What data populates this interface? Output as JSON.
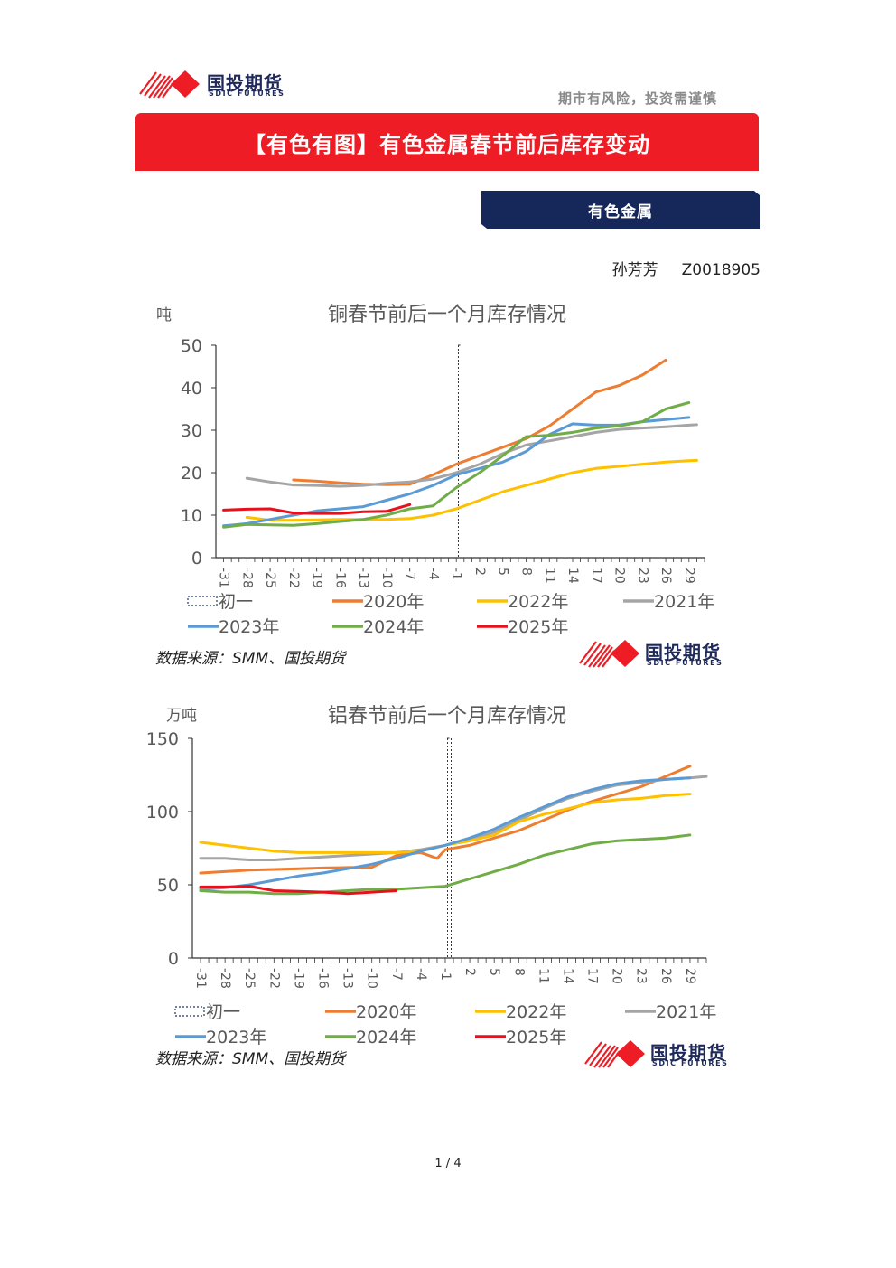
{
  "header": {
    "logo_cn": "国投期货",
    "logo_en": "SDIC FUTURES",
    "slogan": "期市有风险，投资需谨慎"
  },
  "banner": {
    "title": "【有色有图】有色金属春节前后库存变动"
  },
  "category": {
    "label": "有色金属"
  },
  "author": {
    "name": "孙芳芳",
    "id": "Z0018905"
  },
  "colors": {
    "2020年": "#ed7d31",
    "2021年": "#a5a5a5",
    "2022年": "#ffc000",
    "2023年": "#5b9bd5",
    "2024年": "#70ad47",
    "2025年": "#e8101c",
    "初一": "#1f3864",
    "banner": "#ee1c25",
    "category": "#16285a"
  },
  "chart_data": [
    {
      "type": "line",
      "title": "铜春节前后一个月库存情况",
      "ylabel": "吨",
      "ylim": [
        0,
        50
      ],
      "yticks": [
        0,
        10,
        20,
        30,
        40,
        50
      ],
      "x_tick_labels": [
        "-31",
        "-28",
        "-25",
        "-22",
        "-19",
        "-16",
        "-13",
        "-10",
        "-7",
        "-4",
        "-1",
        "2",
        "5",
        "8",
        "11",
        "14",
        "17",
        "20",
        "23",
        "26",
        "29"
      ],
      "xlim": [
        -32,
        31
      ],
      "marker_x": -0.5,
      "legend": [
        "初一",
        "2020年",
        "2022年",
        "2021年",
        "2023年",
        "2024年",
        "2025年"
      ],
      "source": "数据来源：SMM、国投期货",
      "series": [
        {
          "name": "2020年",
          "points": [
            [
              -22,
              18.3
            ],
            [
              -19,
              18
            ],
            [
              -16,
              17.6
            ],
            [
              -13,
              17.3
            ],
            [
              -10,
              17.2
            ],
            [
              -7,
              17.3
            ],
            [
              -4,
              19.5
            ],
            [
              -1,
              22
            ],
            [
              2,
              24
            ],
            [
              5,
              26
            ],
            [
              8,
              28
            ],
            [
              11,
              31
            ],
            [
              14,
              35
            ],
            [
              17,
              39
            ],
            [
              20,
              40.5
            ],
            [
              23,
              43
            ],
            [
              26,
              46.5
            ]
          ]
        },
        {
          "name": "2021年",
          "points": [
            [
              -28,
              18.7
            ],
            [
              -25,
              17.8
            ],
            [
              -22,
              17.1
            ],
            [
              -19,
              17
            ],
            [
              -16,
              16.8
            ],
            [
              -13,
              17
            ],
            [
              -10,
              17.5
            ],
            [
              -7,
              17.8
            ],
            [
              -4,
              18.5
            ],
            [
              -1,
              20
            ],
            [
              2,
              22
            ],
            [
              5,
              24.5
            ],
            [
              8,
              26.5
            ],
            [
              11,
              27.5
            ],
            [
              14,
              28.5
            ],
            [
              17,
              29.5
            ],
            [
              20,
              30.2
            ],
            [
              23,
              30.5
            ],
            [
              26,
              30.8
            ],
            [
              29,
              31.2
            ],
            [
              30,
              31.3
            ]
          ]
        },
        {
          "name": "2022年",
          "points": [
            [
              -28,
              9.5
            ],
            [
              -25,
              8.8
            ],
            [
              -22,
              8.8
            ],
            [
              -19,
              8.9
            ],
            [
              -16,
              9
            ],
            [
              -13,
              9
            ],
            [
              -10,
              9
            ],
            [
              -7,
              9.2
            ],
            [
              -4,
              10
            ],
            [
              -1,
              11.5
            ],
            [
              2,
              13.5
            ],
            [
              5,
              15.5
            ],
            [
              8,
              17
            ],
            [
              11,
              18.5
            ],
            [
              14,
              20
            ],
            [
              17,
              21
            ],
            [
              20,
              21.5
            ],
            [
              23,
              22
            ],
            [
              26,
              22.5
            ],
            [
              29,
              22.8
            ],
            [
              30,
              22.9
            ]
          ]
        },
        {
          "name": "2023年",
          "points": [
            [
              -31,
              7.5
            ],
            [
              -28,
              8
            ],
            [
              -25,
              9
            ],
            [
              -22,
              10
            ],
            [
              -19,
              11
            ],
            [
              -16,
              11.5
            ],
            [
              -13,
              12
            ],
            [
              -10,
              13.5
            ],
            [
              -7,
              15
            ],
            [
              -4,
              17
            ],
            [
              -1,
              19.5
            ],
            [
              2,
              21
            ],
            [
              5,
              22.5
            ],
            [
              8,
              25
            ],
            [
              11,
              29
            ],
            [
              14,
              31.5
            ],
            [
              17,
              31.2
            ],
            [
              20,
              31.2
            ],
            [
              23,
              32
            ],
            [
              26,
              32.5
            ],
            [
              29,
              33
            ]
          ]
        },
        {
          "name": "2024年",
          "points": [
            [
              -31,
              7.2
            ],
            [
              -28,
              7.8
            ],
            [
              -25,
              7.7
            ],
            [
              -22,
              7.6
            ],
            [
              -19,
              8
            ],
            [
              -16,
              8.5
            ],
            [
              -13,
              9
            ],
            [
              -10,
              10
            ],
            [
              -7,
              11.5
            ],
            [
              -4,
              12.2
            ],
            [
              -1,
              16.5
            ],
            [
              2,
              20
            ],
            [
              5,
              24
            ],
            [
              8,
              28.5
            ],
            [
              11,
              28.8
            ],
            [
              14,
              29.5
            ],
            [
              17,
              30.5
            ],
            [
              20,
              31
            ],
            [
              23,
              32
            ],
            [
              26,
              35
            ],
            [
              29,
              36.5
            ]
          ]
        },
        {
          "name": "2025年",
          "points": [
            [
              -31,
              11.2
            ],
            [
              -28,
              11.4
            ],
            [
              -25,
              11.5
            ],
            [
              -22,
              10.5
            ],
            [
              -19,
              10.4
            ],
            [
              -16,
              10.4
            ],
            [
              -13,
              10.8
            ],
            [
              -10,
              10.9
            ],
            [
              -7,
              12.5
            ]
          ]
        }
      ]
    },
    {
      "type": "line",
      "title": "铝春节前后一个月库存情况",
      "ylabel": "万吨",
      "ylim": [
        0,
        150
      ],
      "yticks": [
        0,
        50,
        100,
        150
      ],
      "x_tick_labels": [
        "-31",
        "-28",
        "-25",
        "-22",
        "-19",
        "-16",
        "-13",
        "-10",
        "-7",
        "-4",
        "-1",
        "2",
        "5",
        "8",
        "11",
        "14",
        "17",
        "20",
        "23",
        "26",
        "29"
      ],
      "xlim": [
        -32,
        31
      ],
      "marker_x": -0.5,
      "legend": [
        "初一",
        "2020年",
        "2022年",
        "2021年",
        "2023年",
        "2024年",
        "2025年"
      ],
      "source": "数据来源：SMM、国投期货",
      "series": [
        {
          "name": "2020年",
          "points": [
            [
              -31,
              58
            ],
            [
              -28,
              59
            ],
            [
              -25,
              60
            ],
            [
              -22,
              60.5
            ],
            [
              -19,
              61
            ],
            [
              -16,
              61.5
            ],
            [
              -13,
              61.8
            ],
            [
              -10,
              62
            ],
            [
              -7,
              70
            ],
            [
              -4,
              72
            ],
            [
              -2,
              68
            ],
            [
              -1,
              74
            ],
            [
              2,
              77
            ],
            [
              5,
              82
            ],
            [
              8,
              87
            ],
            [
              11,
              94
            ],
            [
              14,
              101
            ],
            [
              17,
              107
            ],
            [
              20,
              112
            ],
            [
              23,
              117
            ],
            [
              26,
              124
            ],
            [
              29,
              131
            ]
          ]
        },
        {
          "name": "2021年",
          "points": [
            [
              -31,
              68
            ],
            [
              -28,
              68
            ],
            [
              -25,
              67
            ],
            [
              -22,
              67
            ],
            [
              -19,
              68
            ],
            [
              -16,
              69
            ],
            [
              -13,
              70
            ],
            [
              -10,
              71
            ],
            [
              -7,
              72
            ],
            [
              -4,
              74
            ],
            [
              -1,
              77
            ],
            [
              2,
              81
            ],
            [
              5,
              86
            ],
            [
              8,
              94
            ],
            [
              11,
              102
            ],
            [
              14,
              109
            ],
            [
              17,
              114
            ],
            [
              20,
              118
            ],
            [
              23,
              120
            ],
            [
              26,
              122
            ],
            [
              29,
              123
            ],
            [
              31,
              124
            ]
          ]
        },
        {
          "name": "2022年",
          "points": [
            [
              -31,
              79
            ],
            [
              -28,
              77
            ],
            [
              -25,
              75
            ],
            [
              -22,
              73
            ],
            [
              -19,
              72
            ],
            [
              -16,
              72
            ],
            [
              -13,
              72
            ],
            [
              -10,
              72
            ],
            [
              -7,
              72
            ],
            [
              -4,
              73
            ],
            [
              -1,
              77
            ],
            [
              2,
              80
            ],
            [
              5,
              84
            ],
            [
              8,
              93
            ],
            [
              11,
              98
            ],
            [
              14,
              102
            ],
            [
              17,
              106
            ],
            [
              20,
              108
            ],
            [
              23,
              109
            ],
            [
              26,
              111
            ],
            [
              29,
              112
            ]
          ]
        },
        {
          "name": "2023年",
          "points": [
            [
              -31,
              47
            ],
            [
              -28,
              48
            ],
            [
              -25,
              50
            ],
            [
              -22,
              53
            ],
            [
              -19,
              56
            ],
            [
              -16,
              58
            ],
            [
              -13,
              61
            ],
            [
              -10,
              64
            ],
            [
              -7,
              68
            ],
            [
              -4,
              73
            ],
            [
              -1,
              77
            ],
            [
              2,
              82
            ],
            [
              5,
              88
            ],
            [
              8,
              96
            ],
            [
              11,
              103
            ],
            [
              14,
              110
            ],
            [
              17,
              115
            ],
            [
              20,
              119
            ],
            [
              23,
              121
            ],
            [
              26,
              122
            ],
            [
              29,
              123
            ]
          ]
        },
        {
          "name": "2024年",
          "points": [
            [
              -31,
              46
            ],
            [
              -28,
              45
            ],
            [
              -25,
              45
            ],
            [
              -22,
              44
            ],
            [
              -19,
              44
            ],
            [
              -16,
              45
            ],
            [
              -13,
              46
            ],
            [
              -10,
              47
            ],
            [
              -7,
              47
            ],
            [
              -4,
              48
            ],
            [
              -1,
              49
            ],
            [
              2,
              54
            ],
            [
              5,
              59
            ],
            [
              8,
              64
            ],
            [
              11,
              70
            ],
            [
              14,
              74
            ],
            [
              17,
              78
            ],
            [
              20,
              80
            ],
            [
              23,
              81
            ],
            [
              26,
              82
            ],
            [
              29,
              84
            ]
          ]
        },
        {
          "name": "2025年",
          "points": [
            [
              -31,
              48.5
            ],
            [
              -28,
              48.5
            ],
            [
              -25,
              49
            ],
            [
              -22,
              46
            ],
            [
              -19,
              45.5
            ],
            [
              -16,
              45
            ],
            [
              -13,
              44
            ],
            [
              -10,
              45
            ],
            [
              -7,
              46
            ]
          ]
        }
      ]
    }
  ],
  "page": {
    "number": "1 / 4"
  }
}
